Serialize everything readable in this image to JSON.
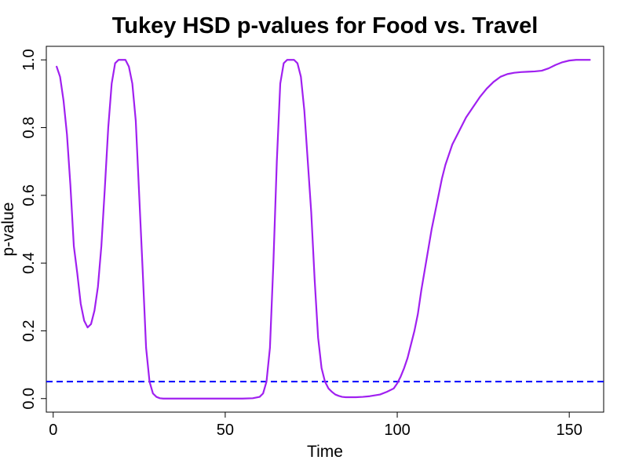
{
  "chart_data": {
    "type": "line",
    "title": "Tukey HSD p-values for Food vs. Travel",
    "xlabel": "Time",
    "ylabel": "p-value",
    "xlim": [
      -2,
      160
    ],
    "ylim": [
      -0.04,
      1.04
    ],
    "x_ticks": [
      0,
      50,
      100,
      150
    ],
    "y_ticks": [
      0.0,
      0.2,
      0.4,
      0.6,
      0.8,
      1.0
    ],
    "x_tick_labels": [
      "0",
      "50",
      "100",
      "150"
    ],
    "y_tick_labels": [
      "0.0",
      "0.2",
      "0.4",
      "0.6",
      "0.8",
      "1.0"
    ],
    "grid": false,
    "legend": "none",
    "series": [
      {
        "color": "#a020f0",
        "x": [
          1,
          2,
          3,
          4,
          5,
          6,
          7,
          8,
          9,
          10,
          11,
          12,
          13,
          14,
          15,
          16,
          17,
          18,
          19,
          20,
          21,
          22,
          23,
          24,
          25,
          26,
          27,
          28,
          29,
          30,
          31,
          32,
          33,
          34,
          35,
          36,
          38,
          40,
          45,
          50,
          55,
          58,
          60,
          61,
          62,
          63,
          64,
          65,
          66,
          67,
          68,
          69,
          70,
          71,
          72,
          73,
          74,
          75,
          76,
          77,
          78,
          79,
          80,
          81,
          82,
          83,
          84,
          85,
          86,
          88,
          90,
          92,
          95,
          97,
          99,
          100,
          101,
          102,
          103,
          104,
          105,
          106,
          107,
          108,
          109,
          110,
          111,
          112,
          113,
          114,
          115,
          116,
          118,
          120,
          122,
          124,
          126,
          128,
          130,
          132,
          134,
          136,
          138,
          140,
          142,
          144,
          146,
          148,
          150,
          152,
          154,
          156
        ],
        "y": [
          0.98,
          0.95,
          0.88,
          0.78,
          0.63,
          0.45,
          0.37,
          0.28,
          0.23,
          0.21,
          0.22,
          0.26,
          0.33,
          0.45,
          0.62,
          0.8,
          0.93,
          0.99,
          1.0,
          1.0,
          1.0,
          0.98,
          0.93,
          0.82,
          0.6,
          0.38,
          0.15,
          0.05,
          0.015,
          0.005,
          0.001,
          0.0,
          0.0,
          0.0,
          0.0,
          0.0,
          0.0,
          0.0,
          0.0,
          0.0,
          0.0,
          0.001,
          0.005,
          0.015,
          0.05,
          0.15,
          0.4,
          0.7,
          0.93,
          0.99,
          1.0,
          1.0,
          1.0,
          0.99,
          0.95,
          0.85,
          0.7,
          0.55,
          0.35,
          0.18,
          0.09,
          0.05,
          0.03,
          0.02,
          0.012,
          0.008,
          0.005,
          0.004,
          0.004,
          0.004,
          0.005,
          0.007,
          0.012,
          0.02,
          0.03,
          0.045,
          0.065,
          0.09,
          0.12,
          0.16,
          0.2,
          0.25,
          0.32,
          0.38,
          0.44,
          0.5,
          0.55,
          0.6,
          0.65,
          0.69,
          0.72,
          0.75,
          0.79,
          0.83,
          0.86,
          0.89,
          0.915,
          0.935,
          0.95,
          0.958,
          0.962,
          0.964,
          0.965,
          0.966,
          0.968,
          0.975,
          0.985,
          0.993,
          0.998,
          1.0,
          1.0,
          1.0
        ]
      }
    ],
    "reference_lines": [
      {
        "orientation": "horizontal",
        "y": 0.05,
        "color": "#0000ff",
        "style": "dashed"
      }
    ]
  }
}
